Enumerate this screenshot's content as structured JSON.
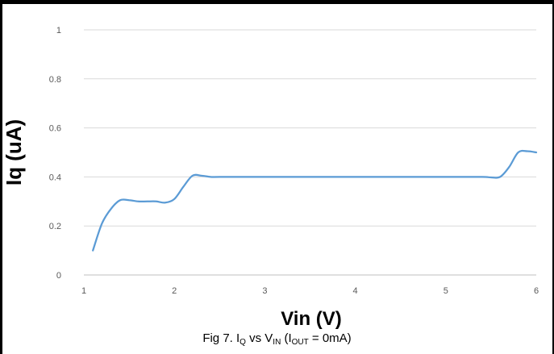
{
  "chart_data": {
    "type": "line",
    "title": "",
    "xlabel": "Vin (V)",
    "ylabel": "Iq (uA)",
    "xlim": [
      1,
      6
    ],
    "ylim": [
      0,
      1
    ],
    "x_ticks": [
      "1",
      "2",
      "3",
      "4",
      "5",
      "6"
    ],
    "y_ticks": [
      "0",
      "0.2",
      "0.4",
      "0.6",
      "0.8",
      "1"
    ],
    "grid": "horizontal",
    "legend": "none",
    "series": [
      {
        "color": "#5b9bd5",
        "x": [
          1.1,
          1.2,
          1.3,
          1.4,
          1.5,
          1.6,
          1.7,
          1.8,
          1.9,
          2.0,
          2.1,
          2.2,
          2.3,
          2.4,
          2.5,
          3.0,
          4.0,
          5.0,
          5.4,
          5.5,
          5.6,
          5.7,
          5.8,
          5.9,
          6.0
        ],
        "y": [
          0.1,
          0.21,
          0.27,
          0.305,
          0.305,
          0.3,
          0.3,
          0.3,
          0.295,
          0.31,
          0.36,
          0.405,
          0.405,
          0.4,
          0.4,
          0.4,
          0.4,
          0.4,
          0.4,
          0.398,
          0.4,
          0.44,
          0.5,
          0.505,
          0.5
        ]
      }
    ]
  },
  "caption": {
    "prefix": "Fig 7. I",
    "q_sub": "Q",
    "vs": " vs V",
    "in_sub": "IN",
    "open": " (I",
    "out_sub": "OUT",
    "rest": " = 0mA)"
  }
}
